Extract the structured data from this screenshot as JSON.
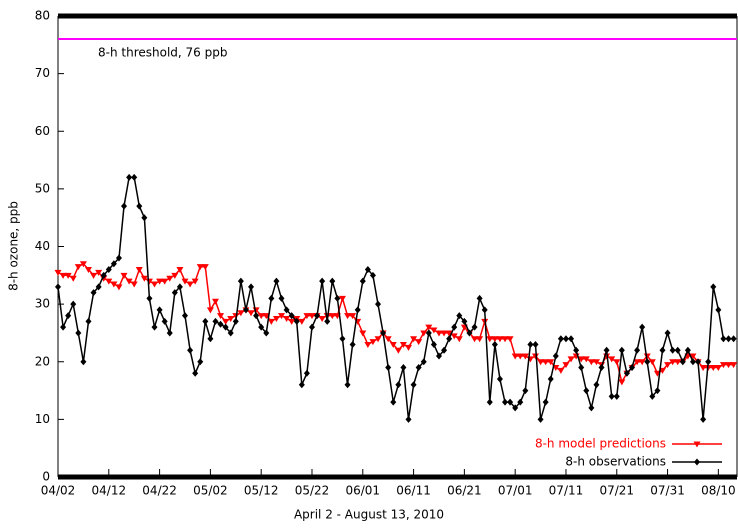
{
  "chart_data": {
    "type": "line",
    "x_label": "April 2 - August 13, 2010",
    "y_label": "8-h ozone,  ppb",
    "categories": [
      "04/02",
      null,
      null,
      null,
      null,
      null,
      null,
      null,
      null,
      null,
      "04/12",
      null,
      null,
      null,
      null,
      null,
      null,
      null,
      null,
      null,
      "04/22",
      null,
      null,
      null,
      null,
      null,
      null,
      null,
      null,
      null,
      "05/02",
      null,
      null,
      null,
      null,
      null,
      null,
      null,
      null,
      null,
      "05/12",
      null,
      null,
      null,
      null,
      null,
      null,
      null,
      null,
      null,
      "05/22",
      null,
      null,
      null,
      null,
      null,
      null,
      null,
      null,
      null,
      "06/01",
      null,
      null,
      null,
      null,
      null,
      null,
      null,
      null,
      null,
      "06/11",
      null,
      null,
      null,
      null,
      null,
      null,
      null,
      null,
      null,
      "06/21",
      null,
      null,
      null,
      null,
      null,
      null,
      null,
      null,
      null,
      "07/01",
      null,
      null,
      null,
      null,
      null,
      null,
      null,
      null,
      null,
      "07/11",
      null,
      null,
      null,
      null,
      null,
      null,
      null,
      null,
      null,
      "07/21",
      null,
      null,
      null,
      null,
      null,
      null,
      null,
      null,
      null,
      "07/31",
      null,
      null,
      null,
      null,
      null,
      null,
      null,
      null,
      null,
      "08/10",
      null,
      null,
      null
    ],
    "series": [
      {
        "name": "8-h model predictions",
        "color": "#ff0000",
        "marker": "triangle-down",
        "values": [
          35.5,
          35,
          35,
          34.5,
          36.5,
          37,
          36,
          35,
          35.5,
          34.5,
          34,
          33.5,
          33,
          35,
          34,
          33.5,
          36,
          34.5,
          34,
          33.5,
          34,
          34,
          34.5,
          35,
          36,
          34,
          33.5,
          34,
          36.5,
          36.5,
          29,
          30.5,
          28,
          27,
          27.5,
          28,
          28.5,
          29,
          28.5,
          29,
          28,
          28,
          27,
          27.5,
          28,
          27.5,
          27,
          27.5,
          27,
          28,
          28,
          28,
          27.5,
          28,
          28,
          28,
          31,
          28,
          28,
          27,
          25,
          23,
          23.5,
          24,
          25,
          24,
          23,
          22,
          23,
          22.5,
          24,
          23.5,
          25,
          26,
          25.5,
          25,
          25,
          25,
          24.5,
          24,
          26,
          25,
          24,
          24,
          27,
          24,
          24,
          24,
          24,
          24,
          21,
          21,
          21,
          20.5,
          21,
          20,
          20,
          20,
          19,
          18.5,
          19.5,
          20.5,
          21,
          20.5,
          20.5,
          20,
          20,
          19.5,
          21,
          20.5,
          20,
          16.5,
          18,
          19,
          20,
          20,
          21,
          20,
          18,
          18.5,
          19.5,
          20,
          20,
          20,
          21,
          21,
          20,
          19,
          19,
          19,
          19,
          19.5,
          19.5,
          19.5
        ]
      },
      {
        "name": "8-h observations",
        "color": "#000000",
        "marker": "diamond",
        "values": [
          33,
          26,
          28,
          30,
          25,
          20,
          27,
          32,
          33,
          35,
          36,
          37,
          38,
          47,
          52,
          52,
          47,
          45,
          31,
          26,
          29,
          27,
          25,
          32,
          33,
          28,
          22,
          18,
          20,
          27,
          24,
          27,
          26.5,
          26,
          25,
          27,
          34,
          29,
          33,
          28,
          26,
          25,
          31,
          34,
          31,
          29,
          28,
          27,
          16,
          18,
          26,
          28,
          34,
          27,
          34,
          31,
          24,
          16,
          23,
          29,
          34,
          36,
          35,
          30,
          25,
          19,
          13,
          16,
          19,
          10,
          16,
          19,
          20,
          25,
          23,
          21,
          22,
          24,
          26,
          28,
          27,
          25,
          26,
          31,
          29,
          13,
          23,
          17,
          13,
          13,
          12,
          13,
          15,
          23,
          23,
          10,
          13,
          17,
          21,
          24,
          24,
          24,
          22,
          19,
          15,
          12,
          16,
          19,
          22,
          14,
          14,
          22,
          18,
          19,
          22,
          26,
          20,
          14,
          15,
          22,
          25,
          22,
          22,
          20,
          22,
          20,
          20,
          10,
          20,
          33,
          29,
          24,
          24,
          24
        ]
      }
    ],
    "threshold": {
      "value": 76,
      "label": "8-h threshold, 76 ppb",
      "color": "#ff00ff"
    },
    "ylim": [
      0,
      80
    ],
    "yticks": [
      0,
      10,
      20,
      30,
      40,
      50,
      60,
      70,
      80
    ],
    "legend": "lower right"
  }
}
